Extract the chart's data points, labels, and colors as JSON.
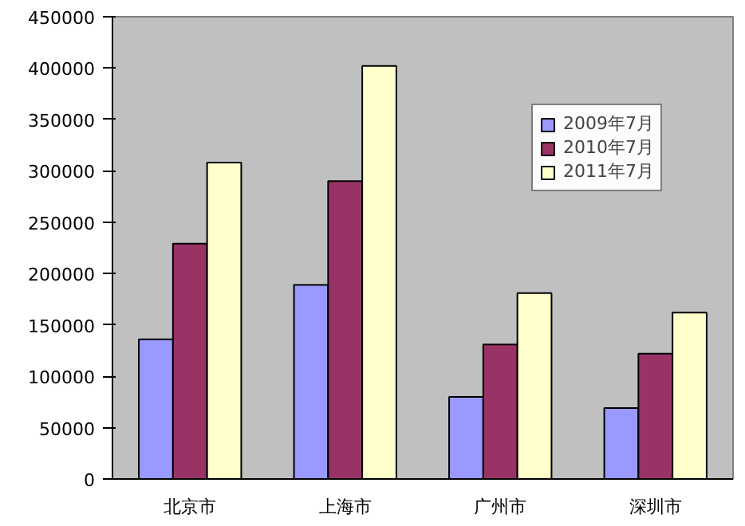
{
  "chart_data": {
    "type": "bar",
    "categories": [
      "北京市",
      "上海市",
      "广州市",
      "深圳市"
    ],
    "series": [
      {
        "name": "2009年7月",
        "color": "#9999ff",
        "values": [
          136000,
          189000,
          80000,
          69000
        ]
      },
      {
        "name": "2010年7月",
        "color": "#993366",
        "values": [
          229000,
          290000,
          131000,
          122000
        ]
      },
      {
        "name": "2011年7月",
        "color": "#ffffcc",
        "values": [
          308000,
          402000,
          181000,
          162000
        ]
      }
    ],
    "ylim": [
      0,
      450000
    ],
    "yticks": [
      0,
      50000,
      100000,
      150000,
      200000,
      250000,
      300000,
      350000,
      400000,
      450000
    ],
    "grid": false,
    "legend": "top right"
  }
}
